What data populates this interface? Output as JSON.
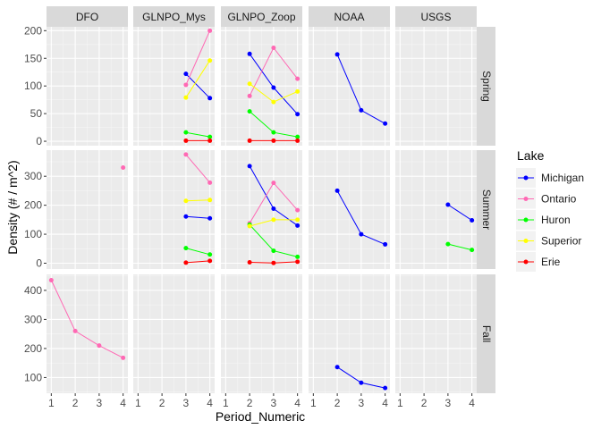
{
  "chart_data": {
    "type": "line",
    "xlabel": "Period_Numeric",
    "ylabel": "Density (# / m^2)",
    "legend_title": "Lake",
    "legend_position": "right",
    "grid": true,
    "xlim": [
      0.8,
      4.2
    ],
    "x_ticks": [
      1,
      2,
      3,
      4
    ],
    "columns": [
      "DFO",
      "GLNPO_Mys",
      "GLNPO_Zoop",
      "NOAA",
      "USGS"
    ],
    "rows": [
      {
        "name": "Spring",
        "ylim": [
          -8,
          207
        ],
        "ticks": [
          0,
          50,
          100,
          150,
          200
        ]
      },
      {
        "name": "Summer",
        "ylim": [
          -20,
          390
        ],
        "ticks": [
          0,
          100,
          200,
          300
        ]
      },
      {
        "name": "Fall",
        "ylim": [
          46,
          455
        ],
        "ticks": [
          100,
          200,
          300,
          400
        ]
      }
    ],
    "series": [
      {
        "name": "Michigan",
        "color": "#0000ff"
      },
      {
        "name": "Ontario",
        "color": "#ff69b4"
      },
      {
        "name": "Huron",
        "color": "#00ff00"
      },
      {
        "name": "Superior",
        "color": "#ffff00"
      },
      {
        "name": "Erie",
        "color": "#ff0000"
      }
    ],
    "data": [
      {
        "row": "Spring",
        "col": "GLNPO_Mys",
        "series": "Michigan",
        "x": [
          3,
          4
        ],
        "y": [
          122,
          78
        ]
      },
      {
        "row": "Spring",
        "col": "GLNPO_Mys",
        "series": "Ontario",
        "x": [
          3,
          4
        ],
        "y": [
          102,
          200
        ]
      },
      {
        "row": "Spring",
        "col": "GLNPO_Mys",
        "series": "Huron",
        "x": [
          3,
          4
        ],
        "y": [
          16,
          8
        ]
      },
      {
        "row": "Spring",
        "col": "GLNPO_Mys",
        "series": "Superior",
        "x": [
          3,
          4
        ],
        "y": [
          79,
          146
        ]
      },
      {
        "row": "Spring",
        "col": "GLNPO_Mys",
        "series": "Erie",
        "x": [
          3,
          4
        ],
        "y": [
          1,
          1
        ]
      },
      {
        "row": "Spring",
        "col": "GLNPO_Zoop",
        "series": "Michigan",
        "x": [
          2,
          3,
          4
        ],
        "y": [
          158,
          97,
          49
        ]
      },
      {
        "row": "Spring",
        "col": "GLNPO_Zoop",
        "series": "Ontario",
        "x": [
          2,
          3,
          4
        ],
        "y": [
          82,
          169,
          113
        ]
      },
      {
        "row": "Spring",
        "col": "GLNPO_Zoop",
        "series": "Huron",
        "x": [
          2,
          3,
          4
        ],
        "y": [
          54,
          16,
          8
        ]
      },
      {
        "row": "Spring",
        "col": "GLNPO_Zoop",
        "series": "Superior",
        "x": [
          2,
          3,
          4
        ],
        "y": [
          104,
          71,
          90
        ]
      },
      {
        "row": "Spring",
        "col": "GLNPO_Zoop",
        "series": "Erie",
        "x": [
          2,
          3,
          4
        ],
        "y": [
          1,
          1,
          1
        ]
      },
      {
        "row": "Spring",
        "col": "NOAA",
        "series": "Michigan",
        "x": [
          2,
          3,
          4
        ],
        "y": [
          157,
          56,
          32
        ]
      },
      {
        "row": "Summer",
        "col": "DFO",
        "series": "Ontario",
        "x": [
          4
        ],
        "y": [
          330
        ]
      },
      {
        "row": "Summer",
        "col": "GLNPO_Mys",
        "series": "Michigan",
        "x": [
          3,
          4
        ],
        "y": [
          161,
          155
        ]
      },
      {
        "row": "Summer",
        "col": "GLNPO_Mys",
        "series": "Ontario",
        "x": [
          3,
          4
        ],
        "y": [
          375,
          278
        ]
      },
      {
        "row": "Summer",
        "col": "GLNPO_Mys",
        "series": "Huron",
        "x": [
          3,
          4
        ],
        "y": [
          52,
          30
        ]
      },
      {
        "row": "Summer",
        "col": "GLNPO_Mys",
        "series": "Superior",
        "x": [
          3,
          4
        ],
        "y": [
          215,
          218
        ]
      },
      {
        "row": "Summer",
        "col": "GLNPO_Mys",
        "series": "Erie",
        "x": [
          3,
          4
        ],
        "y": [
          2,
          8
        ]
      },
      {
        "row": "Summer",
        "col": "GLNPO_Zoop",
        "series": "Michigan",
        "x": [
          2,
          3,
          4
        ],
        "y": [
          335,
          188,
          130
        ]
      },
      {
        "row": "Summer",
        "col": "GLNPO_Zoop",
        "series": "Ontario",
        "x": [
          2,
          3,
          4
        ],
        "y": [
          138,
          277,
          183
        ]
      },
      {
        "row": "Summer",
        "col": "GLNPO_Zoop",
        "series": "Huron",
        "x": [
          2,
          3,
          4
        ],
        "y": [
          133,
          43,
          22
        ]
      },
      {
        "row": "Summer",
        "col": "GLNPO_Zoop",
        "series": "Superior",
        "x": [
          2,
          3,
          4
        ],
        "y": [
          128,
          150,
          150
        ]
      },
      {
        "row": "Summer",
        "col": "GLNPO_Zoop",
        "series": "Erie",
        "x": [
          2,
          3,
          4
        ],
        "y": [
          3,
          1,
          5
        ]
      },
      {
        "row": "Summer",
        "col": "NOAA",
        "series": "Michigan",
        "x": [
          2,
          3,
          4
        ],
        "y": [
          250,
          100,
          65
        ]
      },
      {
        "row": "Summer",
        "col": "USGS",
        "series": "Michigan",
        "x": [
          3,
          4
        ],
        "y": [
          202,
          148
        ]
      },
      {
        "row": "Summer",
        "col": "USGS",
        "series": "Huron",
        "x": [
          3,
          4
        ],
        "y": [
          66,
          46
        ]
      },
      {
        "row": "Fall",
        "col": "DFO",
        "series": "Ontario",
        "x": [
          1,
          2,
          3,
          4
        ],
        "y": [
          435,
          260,
          210,
          168
        ]
      },
      {
        "row": "Fall",
        "col": "NOAA",
        "series": "Michigan",
        "x": [
          2,
          3,
          4
        ],
        "y": [
          136,
          82,
          64
        ]
      }
    ]
  }
}
